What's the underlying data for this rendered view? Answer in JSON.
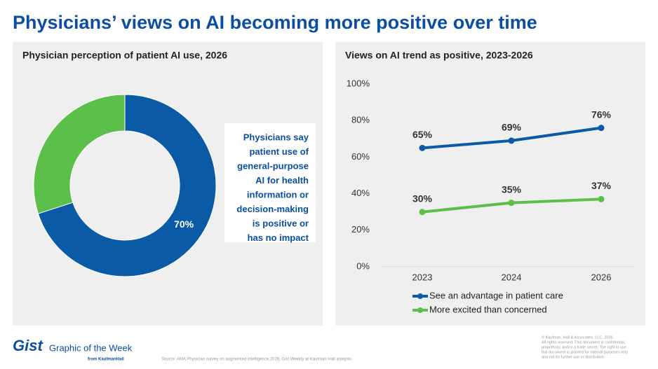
{
  "title": "Physicians’ views on AI becoming more positive over time",
  "chart_data": [
    {
      "type": "donut",
      "title": "Physician perception of patient AI use, 2026",
      "values": [
        70,
        30
      ],
      "value_labels": [
        "70%",
        null
      ],
      "colors": [
        "#0b5aa6",
        "#5cbf4a"
      ],
      "annotation": [
        "Physicians say",
        "patient use of",
        "general-purpose",
        "AI for health",
        "information or",
        "decision-making",
        "is positive or",
        "has no impact"
      ]
    },
    {
      "type": "line",
      "title": "Views on AI trend as positive, 2023-2026",
      "categories": [
        "2023",
        "2024",
        "2026"
      ],
      "series": [
        {
          "name": "See an advantage in patient care",
          "color": "#0b5aa6",
          "values": [
            65,
            69,
            76
          ],
          "value_labels": [
            "65%",
            "69%",
            "76%"
          ]
        },
        {
          "name": "More excited than concerned",
          "color": "#5cbf4a",
          "values": [
            30,
            35,
            37
          ],
          "value_labels": [
            "30%",
            "35%",
            "37%"
          ]
        }
      ],
      "ylim": [
        0,
        100
      ],
      "yticks": [
        {
          "value": 0,
          "label": "0%"
        },
        {
          "value": 20,
          "label": "20%"
        },
        {
          "value": 40,
          "label": "40%"
        },
        {
          "value": 60,
          "label": "60%"
        },
        {
          "value": 80,
          "label": "80%"
        },
        {
          "value": 100,
          "label": "100%"
        }
      ],
      "grid": false,
      "legend": "bottom"
    }
  ],
  "footer": {
    "brand": "Gist",
    "tagline": "Graphic of the Week",
    "from": "from KaufmanHall",
    "source": "Source: AMA Physician survey on augmented intelligence,2026; Gist Weekly at Kaufman Hall analysis.",
    "copyright": [
      "© Kaufman, Hall & Associates, LLC, 2026.",
      "All rights reserved. This document is confidential,",
      "proprietary, and/or a trade secret. The right to use",
      "this document is granted for internal purposes only",
      "and not for further use or distribution."
    ]
  }
}
